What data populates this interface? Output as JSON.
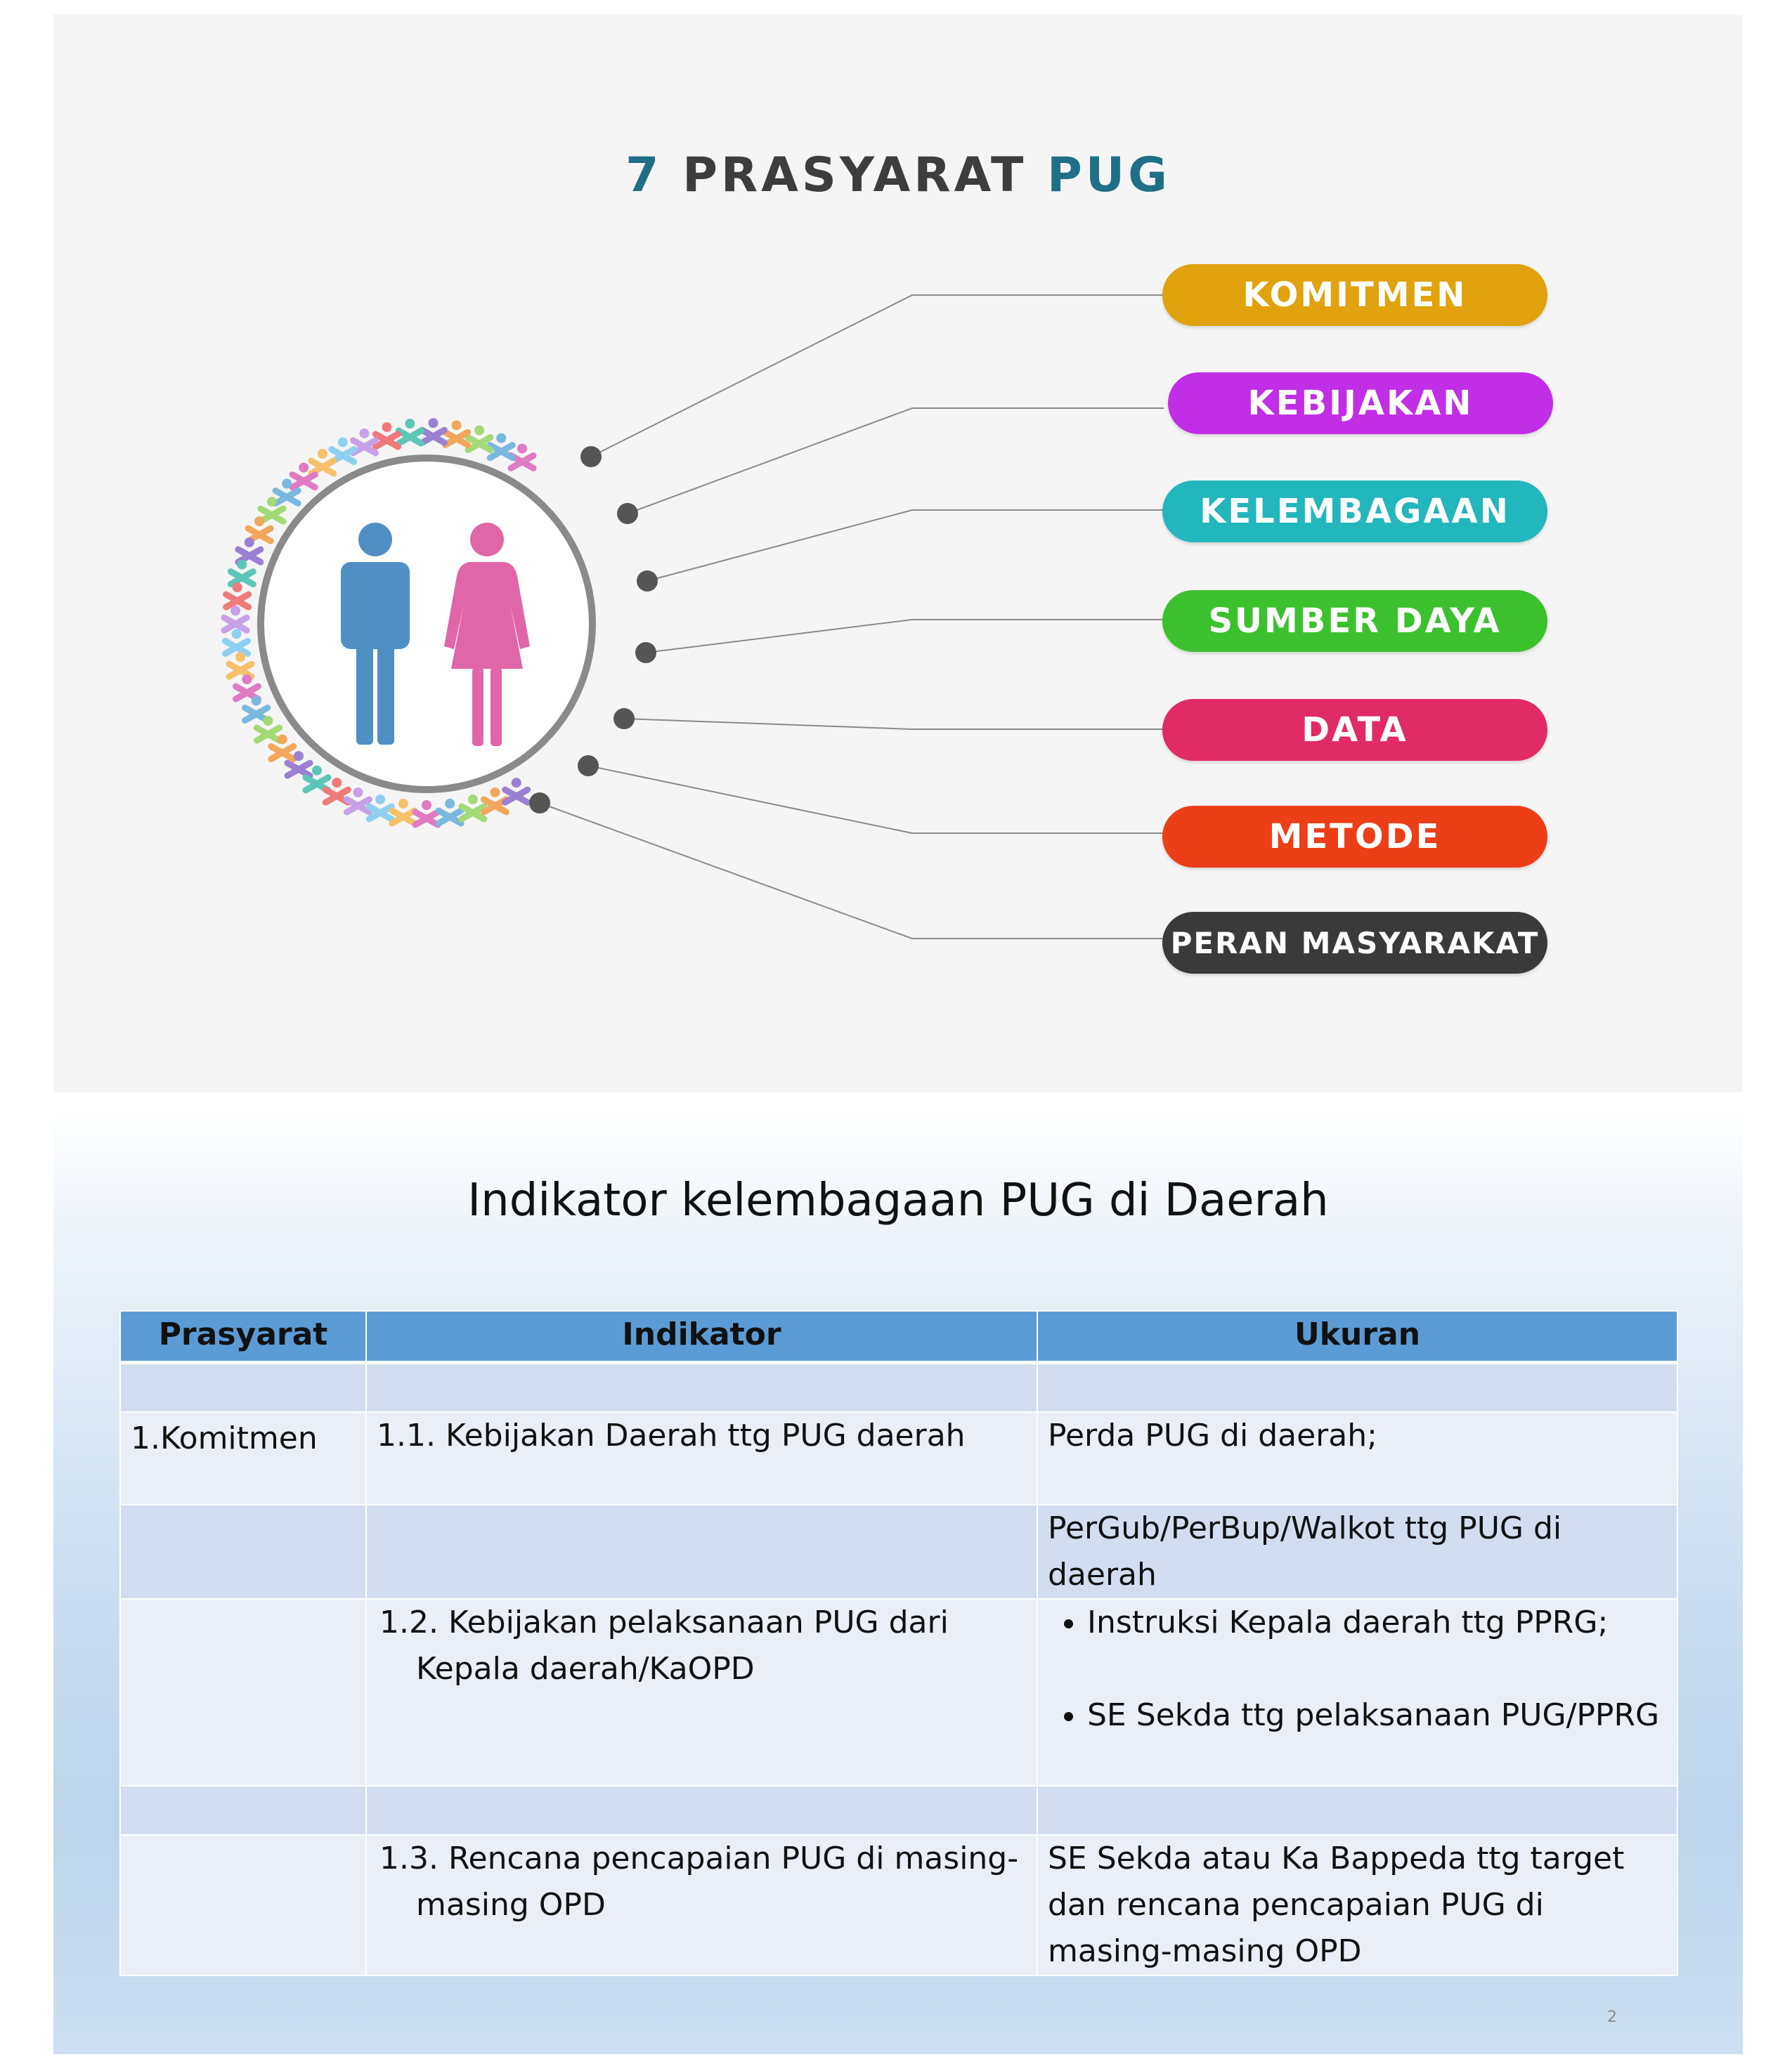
{
  "slide1": {
    "title": {
      "number": "7",
      "middle": "PRASYARAT",
      "end": "PUG"
    },
    "requirements": [
      {
        "label": "KOMITMEN",
        "color": "#e0a20d"
      },
      {
        "label": "KEBIJAKAN",
        "color": "#c12ee6"
      },
      {
        "label": "KELEMBAGAAN",
        "color": "#22b6bd"
      },
      {
        "label": "SUMBER DAYA",
        "color": "#3cc12e"
      },
      {
        "label": "DATA",
        "color": "#e12b66"
      },
      {
        "label": "METODE",
        "color": "#ec3e17"
      },
      {
        "label": "PERAN MASYARAKAT",
        "color": "#3a3a3a"
      }
    ],
    "icons": {
      "male": "man-icon",
      "female": "woman-icon"
    }
  },
  "slide2": {
    "title": "Indikator kelembagaan PUG di Daerah",
    "table": {
      "headers": [
        "Prasyarat",
        "Indikator",
        "Ukuran"
      ],
      "rows": [
        {
          "prasyarat": "",
          "indikator": "",
          "ukuran": ""
        },
        {
          "prasyarat": "1.Komitmen",
          "indikator": "1.1. Kebijakan Daerah ttg PUG daerah",
          "ukuran": "Perda PUG di daerah;"
        },
        {
          "prasyarat": "",
          "indikator": "",
          "ukuran": "PerGub/PerBup/Walkot ttg PUG di daerah"
        },
        {
          "prasyarat": "",
          "indikator": "1.2. Kebijakan pelaksanaan PUG dari Kepala daerah/KaOPD",
          "ukuran_bullets": [
            "Instruksi Kepala daerah ttg PPRG;",
            "SE Sekda ttg pelaksanaan PUG/PPRG"
          ]
        },
        {
          "prasyarat": "",
          "indikator": "",
          "ukuran": ""
        },
        {
          "prasyarat": "",
          "indikator": "1.3. Rencana pencapaian PUG di masing-masing OPD",
          "ukuran": "SE Sekda atau Ka Bappeda ttg target dan rencana pencapaian PUG di masing-masing OPD"
        }
      ]
    },
    "page_number": "2"
  }
}
